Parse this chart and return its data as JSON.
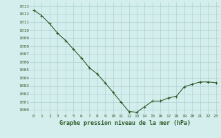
{
  "x": [
    0,
    1,
    2,
    3,
    4,
    5,
    6,
    7,
    8,
    9,
    10,
    11,
    12,
    13,
    14,
    15,
    16,
    17,
    18,
    19,
    20,
    21,
    22,
    23
  ],
  "y": [
    1012.5,
    1011.8,
    1010.8,
    1009.6,
    1008.7,
    1007.6,
    1006.5,
    1005.3,
    1004.5,
    1003.4,
    1002.2,
    1001.0,
    999.8,
    999.7,
    1000.4,
    1001.1,
    1001.1,
    1001.5,
    1001.7,
    1002.9,
    1003.2,
    1003.5,
    1003.5,
    1003.4
  ],
  "ylim": [
    999.5,
    1013.5
  ],
  "yticks": [
    1000,
    1001,
    1002,
    1003,
    1004,
    1005,
    1006,
    1007,
    1008,
    1009,
    1010,
    1011,
    1012,
    1013
  ],
  "xlabel": "Graphe pression niveau de la mer (hPa)",
  "line_color": "#2d5a27",
  "marker": "+",
  "bg_color": "#d4eeee",
  "grid_color": "#b0d0d0",
  "tick_label_color": "#2d5a27",
  "xlabel_color": "#2d5a27"
}
